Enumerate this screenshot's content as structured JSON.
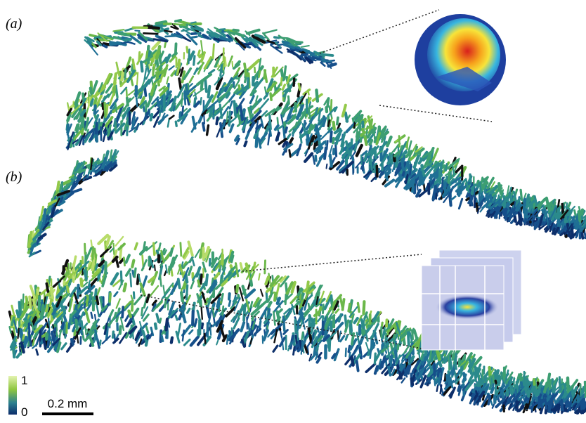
{
  "panels": [
    {
      "label": "(a)"
    },
    {
      "label": "(b)"
    }
  ],
  "colorbar": {
    "max": "1",
    "min": "0"
  },
  "scale_bar": {
    "label": "0.2 mm"
  }
}
